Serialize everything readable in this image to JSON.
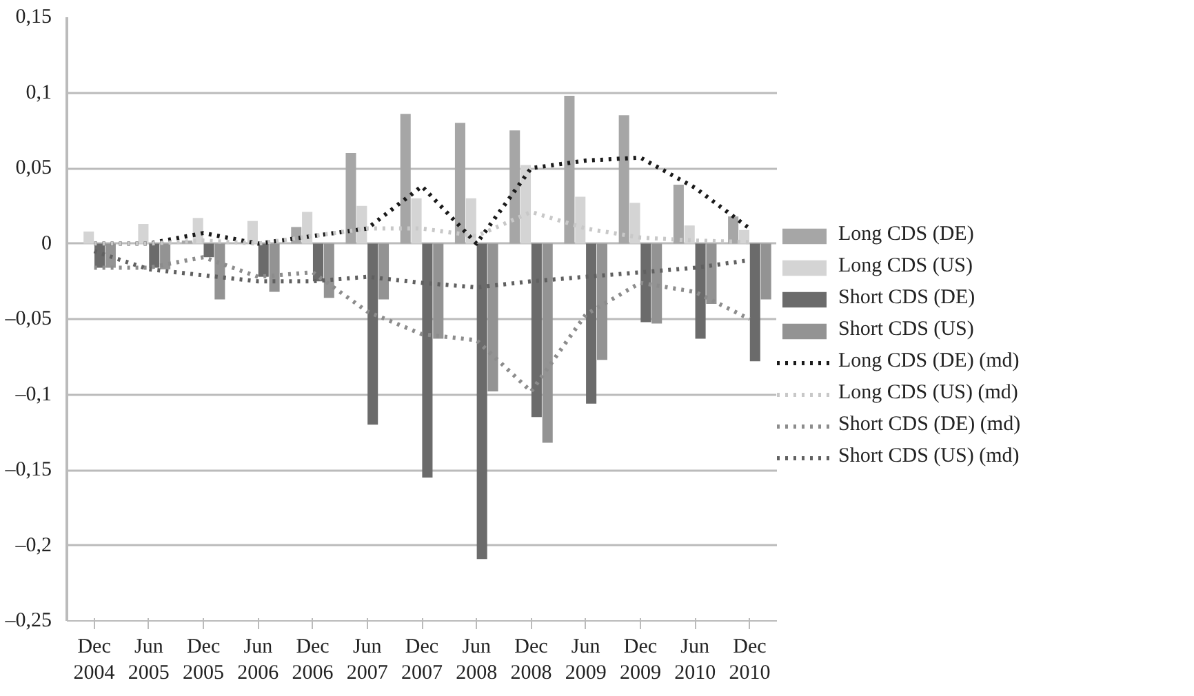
{
  "chart_data": {
    "type": "bar",
    "categories": [
      "Dec 2004",
      "Jun 2005",
      "Dec 2005",
      "Jun 2006",
      "Dec 2006",
      "Jun 2007",
      "Dec 2007",
      "Jun 2008",
      "Dec 2008",
      "Jun 2009",
      "Dec 2009",
      "Jun 2010",
      "Dec 2010"
    ],
    "series": [
      {
        "name": "Long CDS (DE)",
        "color": "#a6a6a6",
        "values": [
          0,
          0,
          0.002,
          0,
          0.011,
          0.06,
          0.086,
          0.08,
          0.075,
          0.098,
          0.085,
          0.039,
          0.018
        ]
      },
      {
        "name": "Long CDS (US)",
        "color": "#d4d4d4",
        "values": [
          0.008,
          0.013,
          0.017,
          0.015,
          0.021,
          0.025,
          0.03,
          0.03,
          0.052,
          0.031,
          0.027,
          0.012,
          0.009
        ]
      },
      {
        "name": "Short CDS (DE)",
        "color": "#6b6b6b",
        "values": [
          -0.016,
          -0.016,
          -0.009,
          -0.022,
          -0.025,
          -0.12,
          -0.155,
          -0.209,
          -0.115,
          -0.106,
          -0.052,
          -0.063,
          -0.078
        ]
      },
      {
        "name": "Short CDS (US)",
        "color": "#939393",
        "values": [
          -0.016,
          -0.017,
          -0.037,
          -0.032,
          -0.036,
          -0.037,
          -0.063,
          -0.098,
          -0.132,
          -0.077,
          -0.053,
          -0.04,
          -0.037
        ]
      },
      {
        "name": "Long CDS (DE) (md)",
        "type": "line",
        "line_style": "dotted",
        "color": "#1a1a1a",
        "values": [
          0,
          0,
          0.007,
          0,
          0.005,
          0.01,
          0.038,
          0,
          0.05,
          0.055,
          0.057,
          0.037,
          0.01
        ]
      },
      {
        "name": "Long CDS (US) (md)",
        "type": "line",
        "line_style": "dotted",
        "color": "#c8c8c8",
        "values": [
          0,
          0,
          0.002,
          0,
          0.005,
          0.01,
          0.01,
          0.005,
          0.021,
          0.01,
          0.004,
          0.002,
          0.001
        ]
      },
      {
        "name": "Short CDS (DE) (md)",
        "type": "line",
        "line_style": "dotted",
        "color": "#8c8c8c",
        "values": [
          -0.016,
          -0.016,
          -0.009,
          -0.022,
          -0.019,
          -0.045,
          -0.06,
          -0.064,
          -0.098,
          -0.047,
          -0.026,
          -0.032,
          -0.05
        ]
      },
      {
        "name": "Short CDS (US) (md)",
        "type": "line",
        "line_style": "dotted",
        "color": "#606060",
        "values": [
          -0.005,
          -0.017,
          -0.021,
          -0.025,
          -0.025,
          -0.022,
          -0.026,
          -0.029,
          -0.025,
          -0.022,
          -0.019,
          -0.016,
          -0.011
        ]
      }
    ],
    "ylim": [
      -0.25,
      0.15
    ],
    "yticks": [
      {
        "value": -0.25,
        "label": "–0,25"
      },
      {
        "value": -0.2,
        "label": "–0,2"
      },
      {
        "value": -0.15,
        "label": "–0,15"
      },
      {
        "value": -0.1,
        "label": "–0,1"
      },
      {
        "value": -0.05,
        "label": "–0,05"
      },
      {
        "value": 0,
        "label": "0"
      },
      {
        "value": 0.05,
        "label": "0,05"
      },
      {
        "value": 0.1,
        "label": "0,1"
      },
      {
        "value": 0.15,
        "label": "0,15"
      }
    ],
    "grid": "y",
    "legend": "right"
  }
}
